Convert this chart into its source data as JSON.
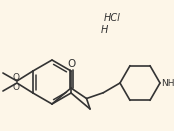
{
  "background_color": "#fdf6e8",
  "line_color": "#333333",
  "line_width": 1.2,
  "font_size": 6.5,
  "text_color": "#333333",
  "figsize": [
    1.74,
    1.31
  ],
  "dpi": 100,
  "HCl": "HCl",
  "H": "H",
  "O": "O",
  "NH": "NH",
  "MeO_upper": "O",
  "MeO_lower": "O"
}
